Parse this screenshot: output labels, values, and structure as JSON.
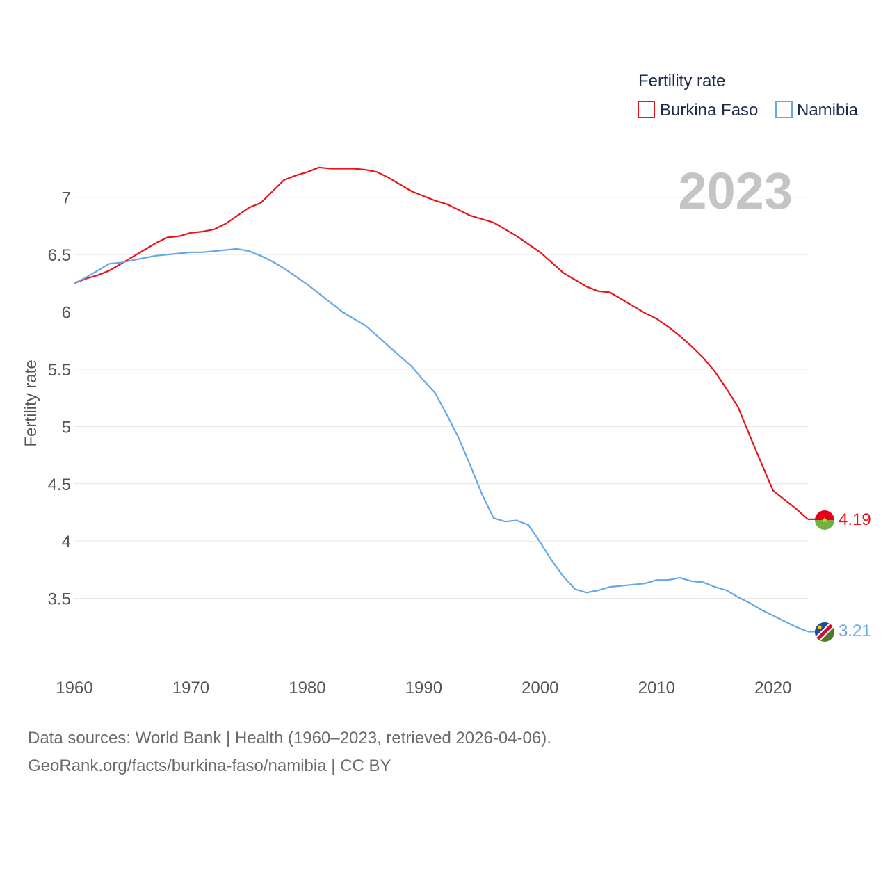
{
  "chart_data": {
    "type": "line",
    "legend_title": "Fertility rate",
    "ylabel": "Fertility rate",
    "year_badge": "2023",
    "xlim": [
      1960,
      2023
    ],
    "ylim": [
      3.0,
      7.35
    ],
    "xticks": [
      1960,
      1970,
      1980,
      1990,
      2000,
      2010,
      2020
    ],
    "yticks": [
      3.5,
      4,
      4.5,
      5,
      5.5,
      6,
      6.5,
      7
    ],
    "ytick_labels": [
      "3.5",
      "4",
      "4.5",
      "5",
      "5.5",
      "6",
      "6.5",
      "7"
    ],
    "series": [
      {
        "name": "Burkina Faso",
        "color": "#e8141a",
        "end_label": "4.19",
        "points": [
          [
            1960,
            6.25
          ],
          [
            1961,
            6.29
          ],
          [
            1962,
            6.32
          ],
          [
            1963,
            6.36
          ],
          [
            1964,
            6.42
          ],
          [
            1965,
            6.48
          ],
          [
            1966,
            6.54
          ],
          [
            1967,
            6.6
          ],
          [
            1968,
            6.65
          ],
          [
            1969,
            6.66
          ],
          [
            1970,
            6.69
          ],
          [
            1971,
            6.7
          ],
          [
            1972,
            6.72
          ],
          [
            1973,
            6.77
          ],
          [
            1974,
            6.84
          ],
          [
            1975,
            6.91
          ],
          [
            1976,
            6.95
          ],
          [
            1977,
            7.05
          ],
          [
            1978,
            7.15
          ],
          [
            1979,
            7.19
          ],
          [
            1980,
            7.22
          ],
          [
            1981,
            7.26
          ],
          [
            1982,
            7.25
          ],
          [
            1983,
            7.25
          ],
          [
            1984,
            7.25
          ],
          [
            1985,
            7.24
          ],
          [
            1986,
            7.22
          ],
          [
            1987,
            7.17
          ],
          [
            1988,
            7.11
          ],
          [
            1989,
            7.05
          ],
          [
            1990,
            7.01
          ],
          [
            1991,
            6.97
          ],
          [
            1992,
            6.94
          ],
          [
            1993,
            6.89
          ],
          [
            1994,
            6.84
          ],
          [
            1995,
            6.81
          ],
          [
            1996,
            6.78
          ],
          [
            1997,
            6.72
          ],
          [
            1998,
            6.66
          ],
          [
            1999,
            6.59
          ],
          [
            2000,
            6.52
          ],
          [
            2001,
            6.43
          ],
          [
            2002,
            6.34
          ],
          [
            2003,
            6.28
          ],
          [
            2004,
            6.22
          ],
          [
            2005,
            6.18
          ],
          [
            2006,
            6.17
          ],
          [
            2007,
            6.11
          ],
          [
            2008,
            6.05
          ],
          [
            2009,
            5.99
          ],
          [
            2010,
            5.94
          ],
          [
            2011,
            5.87
          ],
          [
            2012,
            5.79
          ],
          [
            2013,
            5.7
          ],
          [
            2014,
            5.6
          ],
          [
            2015,
            5.48
          ],
          [
            2016,
            5.33
          ],
          [
            2017,
            5.17
          ],
          [
            2018,
            4.92
          ],
          [
            2019,
            4.68
          ],
          [
            2020,
            4.44
          ],
          [
            2021,
            4.36
          ],
          [
            2022,
            4.28
          ],
          [
            2023,
            4.19
          ]
        ]
      },
      {
        "name": "Namibia",
        "color": "#63a8ea",
        "end_label": "3.21",
        "points": [
          [
            1960,
            6.25
          ],
          [
            1961,
            6.3
          ],
          [
            1962,
            6.36
          ],
          [
            1963,
            6.42
          ],
          [
            1964,
            6.43
          ],
          [
            1965,
            6.45
          ],
          [
            1966,
            6.47
          ],
          [
            1967,
            6.49
          ],
          [
            1968,
            6.5
          ],
          [
            1969,
            6.51
          ],
          [
            1970,
            6.52
          ],
          [
            1971,
            6.52
          ],
          [
            1972,
            6.53
          ],
          [
            1973,
            6.54
          ],
          [
            1974,
            6.55
          ],
          [
            1975,
            6.53
          ],
          [
            1976,
            6.49
          ],
          [
            1977,
            6.44
          ],
          [
            1978,
            6.38
          ],
          [
            1979,
            6.31
          ],
          [
            1980,
            6.24
          ],
          [
            1981,
            6.16
          ],
          [
            1982,
            6.08
          ],
          [
            1983,
            6.0
          ],
          [
            1984,
            5.94
          ],
          [
            1985,
            5.88
          ],
          [
            1986,
            5.79
          ],
          [
            1987,
            5.7
          ],
          [
            1988,
            5.61
          ],
          [
            1989,
            5.52
          ],
          [
            1990,
            5.4
          ],
          [
            1991,
            5.29
          ],
          [
            1992,
            5.1
          ],
          [
            1993,
            4.9
          ],
          [
            1994,
            4.66
          ],
          [
            1995,
            4.41
          ],
          [
            1996,
            4.2
          ],
          [
            1997,
            4.17
          ],
          [
            1998,
            4.18
          ],
          [
            1999,
            4.14
          ],
          [
            2000,
            3.99
          ],
          [
            2001,
            3.83
          ],
          [
            2002,
            3.69
          ],
          [
            2003,
            3.58
          ],
          [
            2004,
            3.55
          ],
          [
            2005,
            3.57
          ],
          [
            2006,
            3.6
          ],
          [
            2007,
            3.61
          ],
          [
            2008,
            3.62
          ],
          [
            2009,
            3.63
          ],
          [
            2010,
            3.66
          ],
          [
            2011,
            3.66
          ],
          [
            2012,
            3.68
          ],
          [
            2013,
            3.65
          ],
          [
            2014,
            3.64
          ],
          [
            2015,
            3.6
          ],
          [
            2016,
            3.57
          ],
          [
            2017,
            3.51
          ],
          [
            2018,
            3.46
          ],
          [
            2019,
            3.4
          ],
          [
            2020,
            3.35
          ],
          [
            2021,
            3.3
          ],
          [
            2022,
            3.25
          ],
          [
            2023,
            3.21
          ]
        ]
      }
    ],
    "flags": {
      "burkina_faso": {
        "top": "#e4001b",
        "bottom": "#71b045",
        "star": "#f4d100"
      },
      "namibia": {
        "blue": "#1f4aa8",
        "red": "#c8102e",
        "green": "#4f7a2d",
        "white": "#ffffff",
        "sun": "#ffce00"
      }
    }
  },
  "footer": {
    "line1": "Data sources: World Bank | Health (1960–2023, retrieved 2026-04-06).",
    "line2": "GeoRank.org/facts/burkina-faso/namibia | CC BY"
  }
}
